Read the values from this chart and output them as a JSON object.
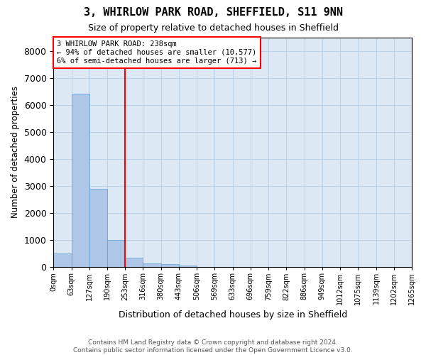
{
  "title": "3, WHIRLOW PARK ROAD, SHEFFIELD, S11 9NN",
  "subtitle": "Size of property relative to detached houses in Sheffield",
  "xlabel": "Distribution of detached houses by size in Sheffield",
  "ylabel": "Number of detached properties",
  "footer_line1": "Contains HM Land Registry data © Crown copyright and database right 2024.",
  "footer_line2": "Contains public sector information licensed under the Open Government Licence v3.0.",
  "bin_labels": [
    "0sqm",
    "63sqm",
    "127sqm",
    "190sqm",
    "253sqm",
    "316sqm",
    "380sqm",
    "443sqm",
    "506sqm",
    "569sqm",
    "633sqm",
    "696sqm",
    "759sqm",
    "822sqm",
    "886sqm",
    "949sqm",
    "1012sqm",
    "1075sqm",
    "1139sqm",
    "1202sqm",
    "1265sqm"
  ],
  "bar_values": [
    500,
    6400,
    2900,
    1000,
    350,
    150,
    100,
    50,
    0,
    0,
    0,
    0,
    0,
    0,
    0,
    0,
    0,
    0,
    0,
    0
  ],
  "bar_color": "#aec6e8",
  "bar_edge_color": "#5a9fd4",
  "red_line_x": 4,
  "ylim": [
    0,
    8500
  ],
  "yticks": [
    0,
    1000,
    2000,
    3000,
    4000,
    5000,
    6000,
    7000,
    8000
  ],
  "annotation_text": "3 WHIRLOW PARK ROAD: 238sqm\n← 94% of detached houses are smaller (10,577)\n6% of semi-detached houses are larger (713) →",
  "red_line_color": "#ff0000",
  "background_color": "#ffffff",
  "plot_bg_color": "#dce9f5",
  "grid_color": "#b0c8e0"
}
